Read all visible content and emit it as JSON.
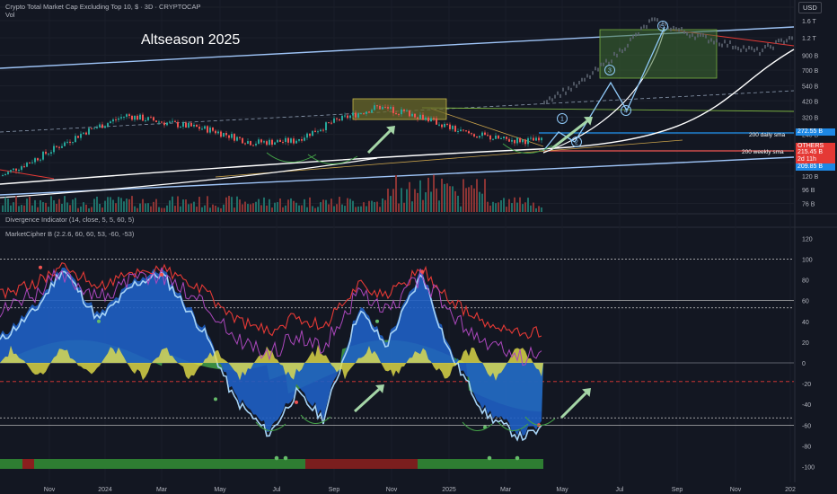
{
  "header": {
    "title": "Crypto Total Market Cap Excluding Top 10, $ · 3D · CRYPTOCAP",
    "vol_label": "Vol",
    "currency": "USD"
  },
  "annotations": {
    "headline": "Altseason 2025",
    "sma200d": "200 daily sma",
    "sma200w": "200 weekly sma",
    "waves": [
      "1",
      "2",
      "3",
      "4",
      "5"
    ]
  },
  "price_badges": {
    "top": "272.55 B",
    "others": "OTHERS",
    "price": "215.45 B",
    "countdown": "2d 11h",
    "bottom": "209.85 B"
  },
  "indicators": {
    "divergence": "Divergence Indicator (14, close, 5, 5, 60, 5)",
    "marketcipher": "MarketCipher B (2.2.6, 60, 60, 53, -60, -53)"
  },
  "colors": {
    "bg": "#131722",
    "up": "#26a69a",
    "down": "#ef5350",
    "channel": "#9fc5f8",
    "wave_blue": "#1f5fc4",
    "wave_light": "#a7d3f5",
    "money_green": "#43a047",
    "money_red": "#c62828",
    "yellow": "#e6e14a",
    "arrow": "#a5d6a7"
  },
  "chart_data": [
    {
      "type": "candlestick",
      "title": "Crypto Total Market Cap Excluding Top 10, $ · 3D · CRYPTOCAP",
      "y_scale": "log",
      "ylim": [
        70,
        2000
      ],
      "y_ticks": [
        "2 T",
        "1.6 T",
        "1.2 T",
        "900 B",
        "700 B",
        "540 B",
        "420 B",
        "320 B",
        "240 B",
        "185 B",
        "150 B",
        "120 B",
        "96 B",
        "76 B"
      ],
      "x_ticks": [
        "Nov",
        "2024",
        "Mar",
        "May",
        "Jul",
        "Sep",
        "Nov",
        "2025",
        "Mar",
        "May",
        "Jul",
        "Sep",
        "Nov",
        "202"
      ],
      "series": [
        {
          "name": "price",
          "x": [
            "2023-10",
            "2023-12",
            "2024-02",
            "2024-03",
            "2024-04",
            "2024-06",
            "2024-08",
            "2024-09",
            "2024-11",
            "2024-12",
            "2025-01",
            "2025-02",
            "2025-03",
            "2025-04"
          ],
          "values": [
            120,
            170,
            250,
            330,
            290,
            260,
            210,
            215,
            300,
            380,
            330,
            250,
            220,
            215
          ]
        },
        {
          "name": "projection",
          "x": [
            "2025-05",
            "2025-06",
            "2025-07",
            "2025-08",
            "2025-09",
            "2025-10",
            "2025-11",
            "2025-12"
          ],
          "values": [
            420,
            560,
            900,
            1600,
            1300,
            1100,
            950,
            1250
          ]
        }
      ]
    },
    {
      "type": "line",
      "title": "MarketCipher B (2.2.6, 60, 60, 53, -60, -53)",
      "ylim": [
        -105,
        125
      ],
      "y_ticks": [
        120,
        100,
        80,
        60,
        40,
        20,
        0,
        -20,
        -40,
        -60,
        -80,
        -100
      ],
      "x": [
        "2023-10",
        "2023-12",
        "2024-02",
        "2024-03",
        "2024-05",
        "2024-06",
        "2024-08",
        "2024-09",
        "2024-11",
        "2024-12",
        "2025-01",
        "2025-03",
        "2025-04"
      ],
      "series": [
        {
          "name": "wave",
          "values": [
            30,
            50,
            85,
            80,
            -15,
            -35,
            -60,
            -45,
            40,
            90,
            20,
            -60,
            -55
          ]
        }
      ]
    }
  ]
}
